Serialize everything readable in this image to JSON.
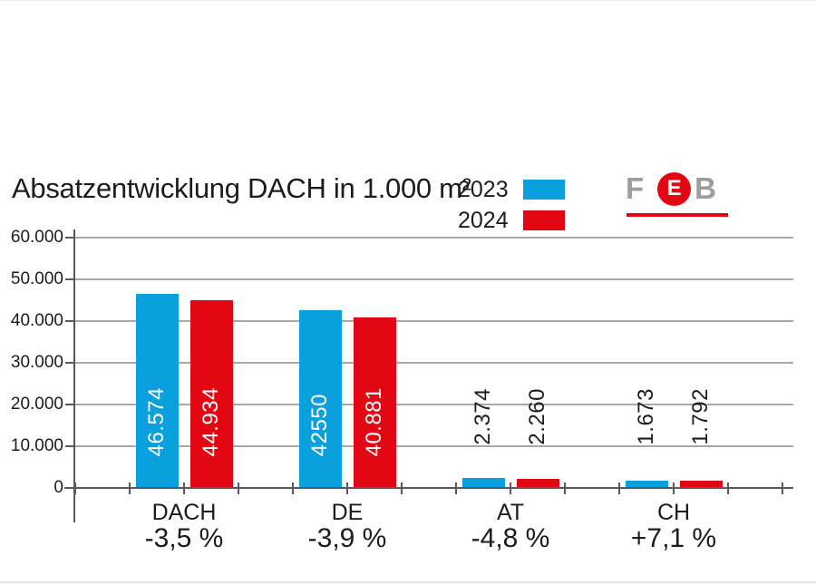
{
  "header": {
    "title": "Absatzentwicklung DACH in 1.000 m²"
  },
  "legend": {
    "items": [
      {
        "label": "2023",
        "color": "#0aa0de"
      },
      {
        "label": "2024",
        "color": "#e30613"
      }
    ]
  },
  "logo": {
    "text": "FEB",
    "letters": [
      "F",
      "E",
      "B"
    ],
    "letter_color": "#9d9d9c",
    "accent_color": "#e30613"
  },
  "colors": {
    "grid": "#a8a8a8",
    "axis": "#595959",
    "text": "#1c1c1c",
    "label_inside_bar": "#ffffff"
  },
  "chart_data": {
    "type": "bar",
    "title": "Absatzentwicklung DACH in 1.000 m²",
    "categories": [
      "DACH",
      "DE",
      "AT",
      "CH"
    ],
    "series": [
      {
        "name": "2023",
        "color": "#0aa0de",
        "values": [
          46574,
          42550,
          2374,
          1673
        ],
        "value_labels": [
          "46.574",
          "42550",
          "2.374",
          "1.673"
        ]
      },
      {
        "name": "2024",
        "color": "#e30613",
        "values": [
          44934,
          40881,
          2260,
          1792
        ],
        "value_labels": [
          "44.934",
          "40.881",
          "2.260",
          "1.792"
        ]
      }
    ],
    "change_labels": [
      "-3,5 %",
      "-3,9 %",
      "-4,8 %",
      "+7,1 %"
    ],
    "ylabel": "",
    "xlabel": "",
    "ylim": [
      0,
      60000
    ],
    "yticks": [
      {
        "value": 60000,
        "label": "60.000"
      },
      {
        "value": 50000,
        "label": "50.000"
      },
      {
        "value": 40000,
        "label": "40.000"
      },
      {
        "value": 30000,
        "label": "30.000"
      },
      {
        "value": 20000,
        "label": "20.000"
      },
      {
        "value": 10000,
        "label": "10.000"
      },
      {
        "value": 0,
        "label": "0"
      }
    ],
    "grid": true,
    "legend_position": "top-center"
  }
}
